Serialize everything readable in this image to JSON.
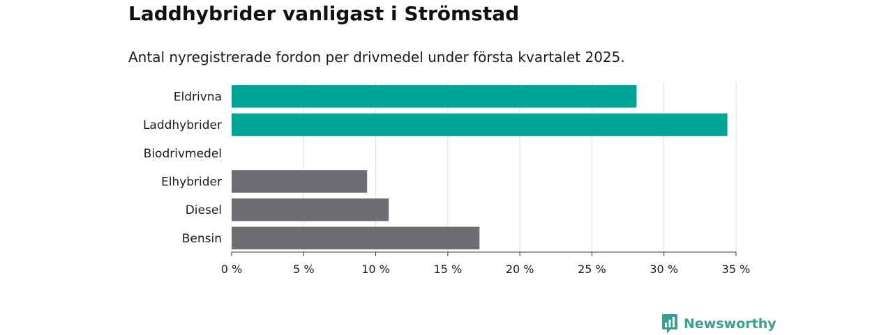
{
  "chart_data": {
    "type": "bar",
    "orientation": "horizontal",
    "title": "Laddhybrider vanligast i Strömstad",
    "subtitle": "Antal nyregistrerade fordon per drivmedel under första kvartalet 2025.",
    "categories": [
      "Eldrivna",
      "Laddhybrider",
      "Biodrivmedel",
      "Elhybrider",
      "Diesel",
      "Bensin"
    ],
    "values": [
      28.1,
      34.4,
      0,
      9.4,
      10.9,
      17.2
    ],
    "bar_colors": [
      "#00a398",
      "#00a398",
      "#6e6d73",
      "#6e6d73",
      "#6e6d73",
      "#6e6d73"
    ],
    "xlim": [
      0,
      35
    ],
    "x_ticks": [
      0,
      5,
      10,
      15,
      20,
      25,
      30,
      35
    ],
    "x_tick_labels": [
      "0 %",
      "5 %",
      "10 %",
      "15 %",
      "20 %",
      "25 %",
      "30 %",
      "35 %"
    ],
    "grid": "vertical",
    "xlabel": "",
    "ylabel": ""
  },
  "branding": {
    "name": "Newsworthy",
    "color": "#3a9e91",
    "icon": "newsworthy-logo-icon"
  }
}
